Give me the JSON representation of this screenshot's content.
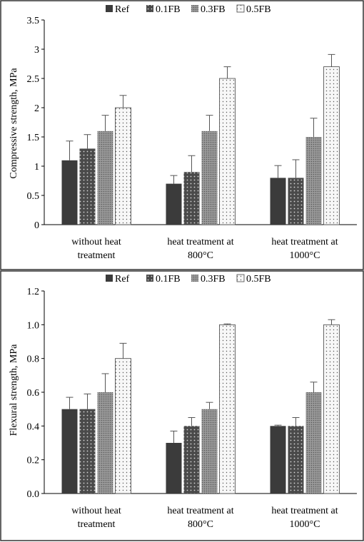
{
  "chart_data": [
    {
      "type": "bar",
      "title": "",
      "xlabel": "",
      "ylabel": "Compressive strength, MPa",
      "ylim": [
        0,
        3.5
      ],
      "yticks": [
        "0",
        "0.5",
        "1",
        "1.5",
        "2",
        "2.5",
        "3",
        "3.5"
      ],
      "categories": [
        [
          "without heat",
          "treatment"
        ],
        [
          "heat treatment at",
          "800°C"
        ],
        [
          "heat treatment at",
          "1000°C"
        ]
      ],
      "series": [
        {
          "name": "Ref",
          "values": [
            1.1,
            0.7,
            0.8
          ],
          "errors": [
            0.33,
            0.14,
            0.21
          ]
        },
        {
          "name": "0.1FB",
          "values": [
            1.3,
            0.9,
            0.8
          ],
          "errors": [
            0.24,
            0.28,
            0.31
          ]
        },
        {
          "name": "0.3FB",
          "values": [
            1.6,
            1.6,
            1.5
          ],
          "errors": [
            0.27,
            0.27,
            0.32
          ]
        },
        {
          "name": "0.5FB",
          "values": [
            2.0,
            2.5,
            2.7
          ],
          "errors": [
            0.21,
            0.2,
            0.21
          ]
        }
      ],
      "legend_position": "top",
      "grid": false
    },
    {
      "type": "bar",
      "title": "",
      "xlabel": "",
      "ylabel": "Flexural strength, MPa",
      "ylim": [
        0,
        1.2
      ],
      "yticks": [
        "0.0",
        "0.2",
        "0.4",
        "0.6",
        "0.8",
        "1.0",
        "1.2"
      ],
      "categories": [
        [
          "without heat",
          "treatment"
        ],
        [
          "heat treatment at",
          "800°C"
        ],
        [
          "heat treatment at",
          "1000°C"
        ]
      ],
      "series": [
        {
          "name": "Ref",
          "values": [
            0.5,
            0.3,
            0.4
          ],
          "errors": [
            0.07,
            0.07,
            0.005
          ]
        },
        {
          "name": "0.1FB",
          "values": [
            0.5,
            0.4,
            0.4
          ],
          "errors": [
            0.09,
            0.05,
            0.05
          ]
        },
        {
          "name": "0.3FB",
          "values": [
            0.6,
            0.5,
            0.6
          ],
          "errors": [
            0.11,
            0.04,
            0.06
          ]
        },
        {
          "name": "0.5FB",
          "values": [
            0.8,
            1.0,
            1.0
          ],
          "errors": [
            0.09,
            0.005,
            0.03
          ]
        }
      ],
      "legend_position": "top",
      "grid": false
    }
  ],
  "series_colors": [
    "#3b3b3b",
    "#4a4a4a",
    "#8a8a8a",
    "#f2f2f2"
  ],
  "series_patterns": [
    "solid",
    "dots-light-on-dark",
    "dots-dense-gray",
    "dots-dark-on-light"
  ]
}
